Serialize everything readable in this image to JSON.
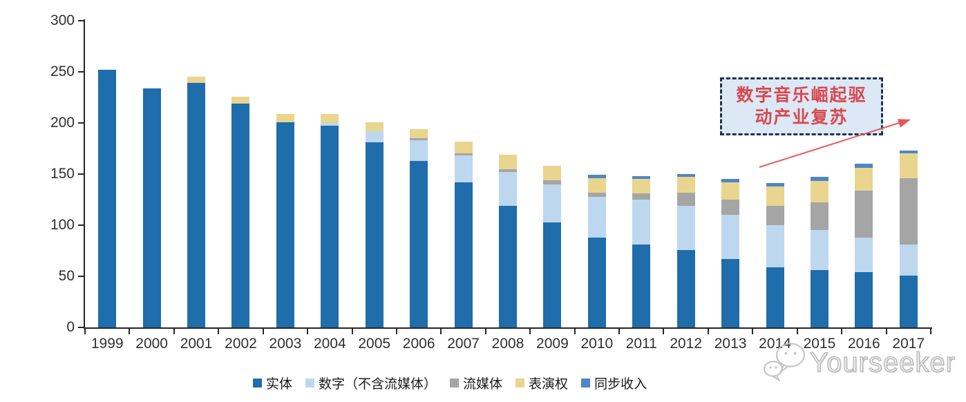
{
  "chart_data": {
    "type": "bar",
    "stacked": true,
    "title": "",
    "xlabel": "",
    "ylabel": "",
    "categories": [
      "1999",
      "2000",
      "2001",
      "2002",
      "2003",
      "2004",
      "2005",
      "2006",
      "2007",
      "2008",
      "2009",
      "2010",
      "2011",
      "2012",
      "2013",
      "2014",
      "2015",
      "2016",
      "2017"
    ],
    "series": [
      {
        "key": "physical",
        "name": "实体",
        "color": "#1F6DAB",
        "values": [
          252,
          234,
          239,
          219,
          201,
          197,
          181,
          163,
          142,
          119,
          103,
          88,
          81,
          76,
          67,
          59,
          56,
          54,
          51
        ]
      },
      {
        "key": "digital",
        "name": "数字（不含流媒体）",
        "color": "#BDD7EE",
        "values": [
          0,
          0,
          0,
          0,
          0,
          3,
          11,
          20,
          26,
          33,
          37,
          40,
          44,
          43,
          43,
          41,
          39,
          34,
          30
        ]
      },
      {
        "key": "streaming",
        "name": "流媒体",
        "color": "#A5A5A5",
        "values": [
          0,
          0,
          0,
          0,
          0,
          0,
          0,
          2,
          2,
          3,
          4,
          4,
          6,
          13,
          15,
          19,
          27,
          46,
          65
        ]
      },
      {
        "key": "performance",
        "name": "表演权",
        "color": "#E9D58E",
        "values": [
          0,
          0,
          6,
          7,
          8,
          9,
          9,
          9,
          12,
          14,
          14,
          14,
          14,
          15,
          17,
          19,
          21,
          22,
          24
        ]
      },
      {
        "key": "sync",
        "name": "同步收入",
        "color": "#4E86C6",
        "values": [
          0,
          0,
          0,
          0,
          0,
          0,
          0,
          0,
          0,
          0,
          0,
          3,
          3,
          3,
          3,
          3,
          4,
          4,
          3
        ]
      }
    ],
    "ylim": [
      0,
      300
    ],
    "yticks": [
      0,
      50,
      100,
      150,
      200,
      250,
      300
    ],
    "grid": false,
    "legend_position": "bottom"
  },
  "annotation": {
    "line1": "数字音乐崛起驱",
    "line2": "动产业复苏",
    "text_color": "#D9484E",
    "fill_color": "#DCE8F5",
    "border_color": "#20324E",
    "arrow_color": "#E8575A"
  },
  "watermark": {
    "text": "Yourseeker",
    "icon": "wechat-bubbles-icon",
    "color": "#B3B3B3"
  }
}
